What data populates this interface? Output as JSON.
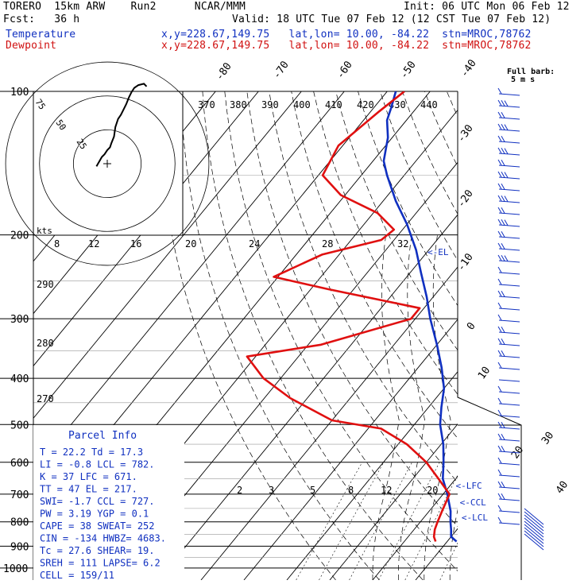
{
  "header": {
    "model": "TORERO  15km ARW    Run2      NCAR/MMM",
    "init": "Init: 06 UTC Mon 06 Feb 12",
    "fcst": "Fcst:   36 h",
    "valid": "Valid: 18 UTC Tue 07 Feb 12 (12 CST Tue 07 Feb 12)",
    "temp_label": "Temperature",
    "dew_label": "Dewpoint",
    "location": "x,y=228.67,149.75   lat,lon= 10.00, -84.22  stn=MROC,78762"
  },
  "colors": {
    "temperature": "#1030c0",
    "dewpoint": "#e01010",
    "parcel_text": "#1030c0"
  },
  "chart_data": {
    "type": "line",
    "subtype": "skew-T log-P sounding",
    "y_axis": {
      "label": "pressure (hPa)",
      "scale": "log",
      "range": [
        1000,
        100
      ],
      "ticks": [
        100,
        200,
        300,
        400,
        500,
        600,
        700,
        800,
        900,
        1000
      ]
    },
    "isotherm_labels": [
      "-80",
      "-70",
      "-60",
      "-50",
      "-40",
      "-30",
      "-20",
      "-10",
      "0",
      "10",
      "20",
      "30",
      "40"
    ],
    "dry_adiabat_labels": [
      "370",
      "380",
      "390",
      "400",
      "410",
      "420",
      "430",
      "440"
    ],
    "mixing_ratio_labels": [
      "2",
      "3",
      "5",
      "8",
      "12",
      "20"
    ],
    "theta_e_labels": [
      "290",
      "280",
      "270"
    ],
    "hodograph_speed_labels": [
      "8",
      "12",
      "16",
      "20",
      "24",
      "28",
      "32"
    ],
    "hodograph_unit": "kts",
    "hodograph_ring_labels": [
      "75",
      "50",
      "25"
    ],
    "barb_legend": [
      "Full barb:",
      "5 m s"
    ],
    "levels": [
      {
        "label": "<-EL",
        "p": 217
      },
      {
        "label": "<-LFC",
        "p": 671
      },
      {
        "label": "<-CCL",
        "p": 727
      },
      {
        "label": "<-LCL",
        "p": 782
      }
    ],
    "series": [
      {
        "name": "Temperature",
        "color": "#1030c0",
        "points": [
          [
            880,
            22.2
          ],
          [
            860,
            20.0
          ],
          [
            830,
            18.6
          ],
          [
            800,
            17.0
          ],
          [
            760,
            15.0
          ],
          [
            700,
            11.0
          ],
          [
            650,
            7.0
          ],
          [
            600,
            4.0
          ],
          [
            550,
            0.5
          ],
          [
            500,
            -4.0
          ],
          [
            460,
            -7.0
          ],
          [
            420,
            -10.0
          ],
          [
            380,
            -14.5
          ],
          [
            340,
            -20.0
          ],
          [
            300,
            -26.5
          ],
          [
            270,
            -31.5
          ],
          [
            240,
            -37.5
          ],
          [
            215,
            -43.0
          ],
          [
            190,
            -50.0
          ],
          [
            170,
            -57.0
          ],
          [
            150,
            -64.0
          ],
          [
            140,
            -67.5
          ],
          [
            125,
            -71.0
          ],
          [
            115,
            -74.5
          ],
          [
            108,
            -76.0
          ],
          [
            100,
            -78.0
          ]
        ]
      },
      {
        "name": "Dewpoint",
        "color": "#e01010",
        "points": [
          [
            880,
            17.3
          ],
          [
            860,
            16.0
          ],
          [
            830,
            14.8
          ],
          [
            800,
            14.0
          ],
          [
            760,
            13.0
          ],
          [
            700,
            11.5
          ],
          [
            650,
            6.0
          ],
          [
            600,
            0.0
          ],
          [
            550,
            -8.0
          ],
          [
            510,
            -17.0
          ],
          [
            490,
            -30.0
          ],
          [
            440,
            -44.0
          ],
          [
            400,
            -54.0
          ],
          [
            360,
            -62.0
          ],
          [
            340,
            -47.0
          ],
          [
            300,
            -31.0
          ],
          [
            285,
            -31.0
          ],
          [
            260,
            -56.0
          ],
          [
            245,
            -71.0
          ],
          [
            220,
            -64.0
          ],
          [
            205,
            -53.0
          ],
          [
            195,
            -52.0
          ],
          [
            180,
            -59.0
          ],
          [
            165,
            -71.0
          ],
          [
            150,
            -79.0
          ],
          [
            130,
            -81.0
          ],
          [
            110,
            -78.0
          ],
          [
            100,
            -76.0
          ]
        ]
      }
    ],
    "hodograph_trace": [
      [
        -8,
        -2
      ],
      [
        -4,
        5
      ],
      [
        -2,
        7
      ],
      [
        0,
        10
      ],
      [
        2,
        12
      ],
      [
        3,
        15
      ],
      [
        5,
        20
      ],
      [
        6,
        27
      ],
      [
        8,
        33
      ],
      [
        10,
        36
      ],
      [
        12,
        40
      ],
      [
        14,
        44
      ],
      [
        16,
        49
      ],
      [
        18,
        53
      ],
      [
        20,
        56
      ],
      [
        23,
        58
      ],
      [
        27,
        59
      ],
      [
        29,
        57
      ]
    ]
  },
  "parcel_info": {
    "title": "Parcel Info",
    "rows": [
      "T  =    22.2  Td =  17.3",
      "LI =    -0.8  LCL =  782.",
      "K  =      37  LFC =  671.",
      "TT =      47  EL  =  217.",
      "SWI=    -1.7  CCL =  727.",
      "PW =    3.19  YGP =   0.1",
      "CAPE =    38  SWEAT=  252",
      "CIN =   -134  HWBZ= 4683.",
      "Tc =    27.6  SHEAR=  19.",
      "SREH =   111  LAPSE=  6.2",
      "CELL = 159/11"
    ]
  }
}
